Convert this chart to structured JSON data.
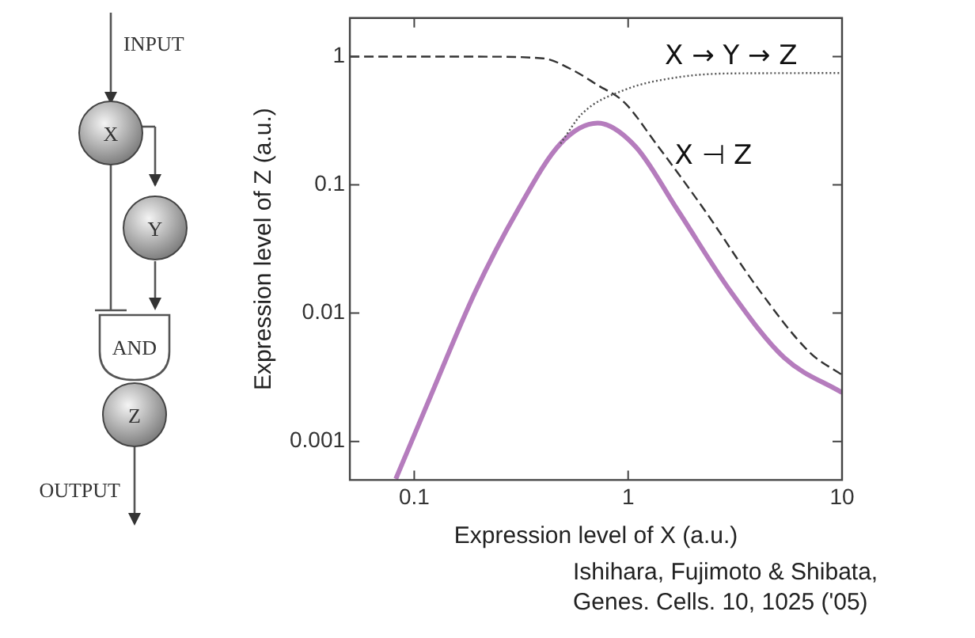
{
  "chart_data": [
    {
      "type": "other",
      "annotations": [
        "INPUT",
        "X",
        "Y",
        "AND",
        "Z",
        "OUTPUT"
      ]
    },
    {
      "type": "line",
      "xlabel": "Expression level of X (a.u.)",
      "ylabel": "Expression level of Z (a.u.)",
      "log": "xy",
      "grid": false,
      "legend": false,
      "marker": "none",
      "xlim": [
        0.05,
        10
      ],
      "xticks": [
        0.1,
        1,
        10
      ],
      "ylim": [
        0.0005,
        2
      ],
      "yticks": [
        0.001,
        0.01,
        0.1,
        1
      ],
      "series": [
        {
          "color": "#b57cbd",
          "line_style": "solid",
          "x": [
            0.082,
            0.115,
            0.193,
            0.305,
            0.483,
            0.72,
            1.08,
            1.7,
            3.02,
            5.36,
            10
          ],
          "values": [
            0.00051,
            0.00195,
            0.0147,
            0.0638,
            0.21,
            0.303,
            0.2,
            0.064,
            0.0147,
            0.0045,
            0.0024
          ]
        },
        {
          "color": "#333333",
          "line_style": "dashed",
          "x": [
            0.05,
            0.2,
            0.4,
            0.54,
            0.72,
            0.96,
            1.35,
            2.27,
            4,
            7.1,
            10
          ],
          "values": [
            1,
            1,
            0.97,
            0.8,
            0.6,
            0.44,
            0.21,
            0.064,
            0.016,
            0.0049,
            0.0033
          ]
        },
        {
          "color": "#555555",
          "line_style": "dotted",
          "x": [
            0.483,
            0.61,
            0.96,
            1.7,
            3.02,
            10
          ],
          "values": [
            0.21,
            0.36,
            0.55,
            0.69,
            0.74,
            0.745
          ]
        }
      ],
      "annotations": [
        "X → Y → Z",
        "X ⊣ Z",
        "Ishihara, Fujimoto & Shibata,",
        "Genes. Cells. 10, 1025 ('05)"
      ]
    }
  ]
}
